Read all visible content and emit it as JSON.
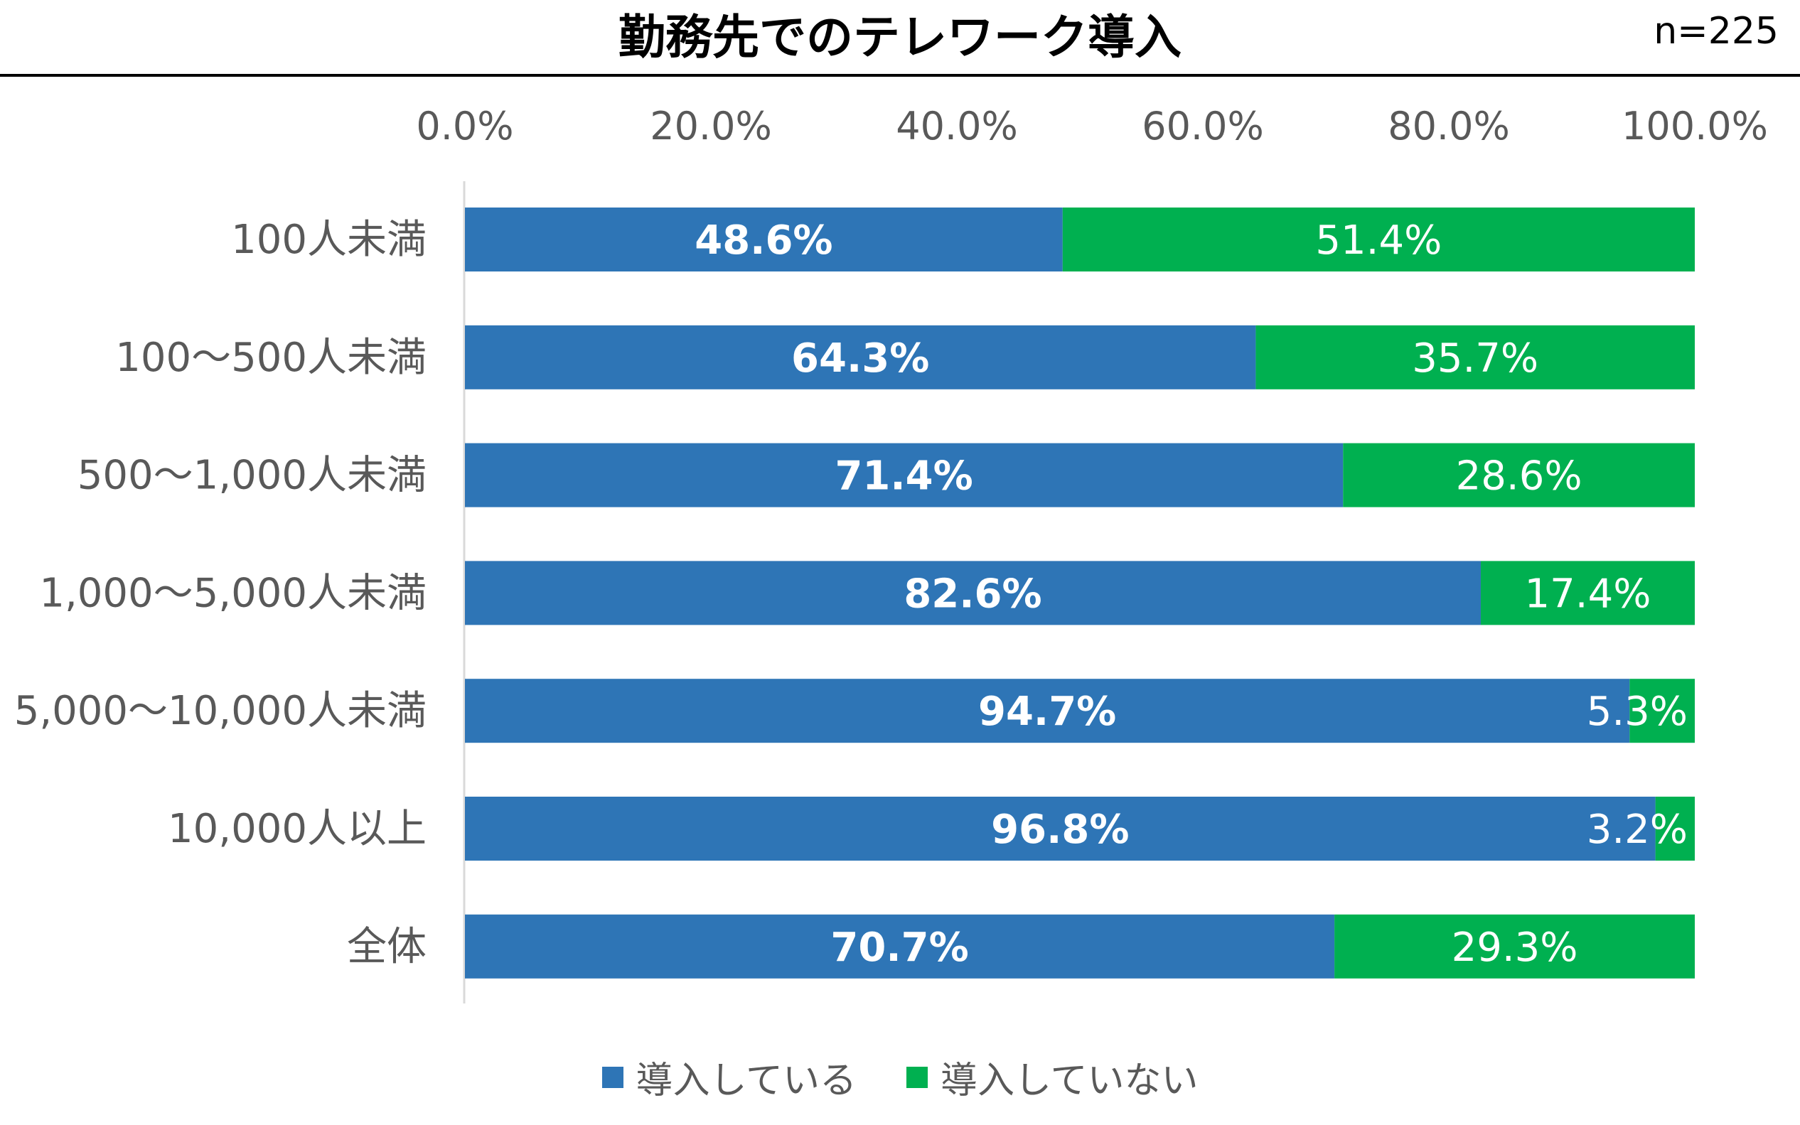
{
  "title": "勤務先でのテレワーク導入",
  "sample_size": "n=225",
  "colors": {
    "introduced": "#2E75B6",
    "not_introduced": "#00B050",
    "axis": "#D9D9D9"
  },
  "chart_data": {
    "type": "bar",
    "orientation": "horizontal",
    "stacked": true,
    "categories": [
      "100人未満",
      "100～500人未満",
      "500～1,000人未満",
      "1,000～5,000人未満",
      "5,000～10,000人未満",
      "10,000人以上",
      "全体"
    ],
    "series": [
      {
        "name": "導入している",
        "values": [
          48.6,
          64.3,
          71.4,
          82.6,
          94.7,
          96.8,
          70.7
        ],
        "labels": [
          "48.6%",
          "64.3%",
          "71.4%",
          "82.6%",
          "94.7%",
          "96.8%",
          "70.7%"
        ]
      },
      {
        "name": "導入していない",
        "values": [
          51.4,
          35.7,
          28.6,
          17.4,
          5.3,
          3.2,
          29.3
        ],
        "labels": [
          "51.4%",
          "35.7%",
          "28.6%",
          "17.4%",
          "5.3%",
          "3.2%",
          "29.3%"
        ]
      }
    ],
    "xlim": [
      0,
      100
    ],
    "x_ticks": [
      "0.0%",
      "20.0%",
      "40.0%",
      "60.0%",
      "80.0%",
      "100.0%"
    ],
    "axis_position": "top",
    "grid": false,
    "legend_position": "bottom"
  }
}
